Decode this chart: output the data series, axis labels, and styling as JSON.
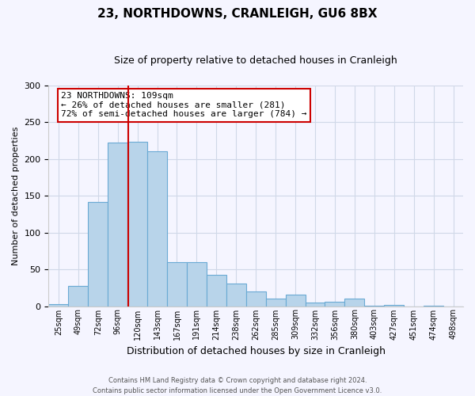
{
  "title": "23, NORTHDOWNS, CRANLEIGH, GU6 8BX",
  "subtitle": "Size of property relative to detached houses in Cranleigh",
  "xlabel": "Distribution of detached houses by size in Cranleigh",
  "ylabel": "Number of detached properties",
  "bar_labels": [
    "25sqm",
    "49sqm",
    "72sqm",
    "96sqm",
    "120sqm",
    "143sqm",
    "167sqm",
    "191sqm",
    "214sqm",
    "238sqm",
    "262sqm",
    "285sqm",
    "309sqm",
    "332sqm",
    "356sqm",
    "380sqm",
    "403sqm",
    "427sqm",
    "451sqm",
    "474sqm",
    "498sqm"
  ],
  "bar_values": [
    3,
    27,
    142,
    222,
    223,
    210,
    60,
    60,
    43,
    31,
    20,
    10,
    16,
    5,
    6,
    10,
    1,
    2,
    0,
    1,
    0
  ],
  "bar_color": "#b8d4ea",
  "bar_edge_color": "#6aaad4",
  "vline_color": "#cc0000",
  "vline_x": 3.54,
  "annotation_line1": "23 NORTHDOWNS: 109sqm",
  "annotation_line2": "← 26% of detached houses are smaller (281)",
  "annotation_line3": "72% of semi-detached houses are larger (784) →",
  "annotation_box_color": "#ffffff",
  "annotation_box_edge_color": "#cc0000",
  "ylim": [
    0,
    300
  ],
  "yticks": [
    0,
    50,
    100,
    150,
    200,
    250,
    300
  ],
  "footer_line1": "Contains HM Land Registry data © Crown copyright and database right 2024.",
  "footer_line2": "Contains public sector information licensed under the Open Government Licence v3.0.",
  "bg_color": "#f5f5ff",
  "grid_color": "#d0d8e8",
  "title_fontsize": 11,
  "subtitle_fontsize": 9,
  "ylabel_fontsize": 8,
  "xlabel_fontsize": 9,
  "tick_fontsize": 7,
  "annotation_fontsize": 8,
  "footer_fontsize": 6
}
